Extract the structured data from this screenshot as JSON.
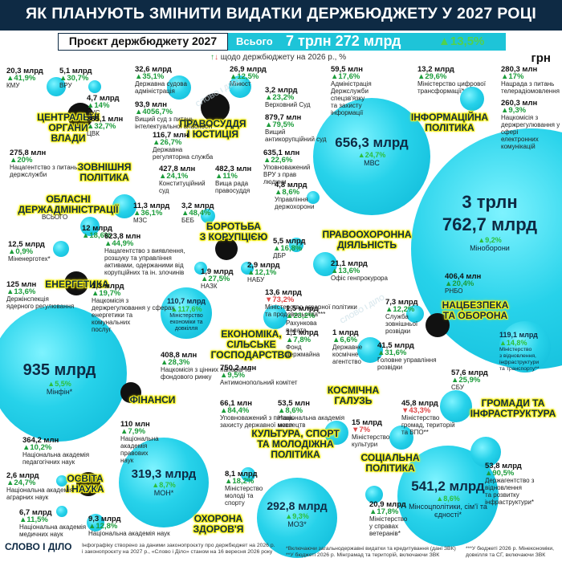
{
  "header": {
    "title": "ЯК ПЛАНУЮТЬ ЗМІНИТИ ВИДАТКИ ДЕРЖБЮДЖЕТУ У 2027 РОЦІ",
    "project_label": "Проєкт держбюджету 2027",
    "total_label": "Всього",
    "total_value": "7 трлн 272 млрд",
    "total_pct": "13,5%",
    "note": "щодо держбюджету на 2026 р., %",
    "unit": "грн"
  },
  "colors": {
    "header_bg": "#0e2a44",
    "bubble": "#1ec4d8",
    "category_highlight": "#f7ef1a",
    "increase": "#1b9c3a",
    "decrease": "#e04848"
  },
  "categories": {
    "central": "ЦЕНТРАЛЬНІ\nОРГАНИ\nВЛАДИ",
    "justice": "ПРАВОСУДДЯ\nІ ЮСТИЦІЯ",
    "info": "ІНФОРМАЦІЙНА\nПОЛІТИКА",
    "foreign": "ЗОВНІШНЯ\nПОЛІТИКА",
    "regional": "ОБЛАСНІ\nДЕРЖАДМІНІСТРАЦІЇ",
    "corruption": "БОРОТЬБА\nЗ КОРУПЦІЄЮ",
    "law": "ПРАВООХОРОННА\nДІЯЛЬНІСТЬ",
    "energy": "ЕНЕРГЕТИКА",
    "security": "НАЦБЕЗПЕКА\nТА ОБОРОНА",
    "economy": "ЕКОНОМІКА,\nСІЛЬСЬКЕ\nГОСПОДАРСТВО",
    "finance": "ФІНАНСИ",
    "space": "КОСМІЧНА\nГАЛУЗЬ",
    "infra": "ГРОМАДИ ТА\nІНФРАСТРУКТУРА",
    "culture": "КУЛЬТУРА, СПОРТ\nТА МОЛОДІЖНА\nПОЛІТИКА",
    "education": "ОСВІТА\nІ НАУКА",
    "social": "СОЦІАЛЬНА\nПОЛІТИКА",
    "health": "ОХОРОНА\nЗДОРОВ'Я"
  },
  "big": {
    "defense": {
      "value": "3 трлн\n762,7 млрд",
      "pct": "9,2%",
      "name": "Міноборони"
    },
    "finance": {
      "value": "935 млрд",
      "pct": "5,5%",
      "name": "Мінфін*"
    },
    "mvs": {
      "value": "656,3 млрд",
      "pct": "24,7%",
      "name": "МВС"
    },
    "social": {
      "value": "541,2 млрд",
      "pct": "8,6%",
      "name": "Мінсоцполітики,\nсім'ї та єдності*"
    },
    "education": {
      "value": "319,3 млрд",
      "pct": "8,7%",
      "name": "МОН*"
    },
    "health": {
      "value": "292,8 млрд",
      "pct": "9,3%",
      "name": "МОЗ*"
    },
    "economy": {
      "value": "110,7 млрд",
      "pct": "117,6%",
      "name": "Міністерство\nекономіки та\nдовкілля"
    },
    "recovery": {
      "value": "119,1 млрд",
      "pct": "14,8%",
      "name": "Міністерство\nз відновлення,\nінфраструктури\nта транспорту**"
    }
  },
  "items": [
    {
      "amt": "20,3 млрд",
      "pct": "41,9%",
      "name": "КМУ",
      "d": "u"
    },
    {
      "amt": "5,1 млрд",
      "pct": "30,7%",
      "name": "ВРУ",
      "d": "u"
    },
    {
      "amt": "4,7 млрд",
      "pct": "14%",
      "name": "ДУС",
      "d": "u"
    },
    {
      "amt": "365,1 млн",
      "pct": "32,7%",
      "name": "ЦВК",
      "d": "u"
    },
    {
      "amt": "275,8 млн",
      "pct": "20%",
      "name": "Нацагентство з питань\nдержслужби",
      "d": "u"
    },
    {
      "amt": "32,6 млрд",
      "pct": "35,1%",
      "name": "Державна судова\nадміністрація",
      "d": "u"
    },
    {
      "amt": "26,9 млрд",
      "pct": "12,5%",
      "name": "Мінюст",
      "d": "u"
    },
    {
      "amt": "3,2 млрд",
      "pct": "23,2%",
      "name": "Верховний Суд",
      "d": "u"
    },
    {
      "amt": "93,9 млн",
      "pct": "4056,7%",
      "name": "Вищий суд з питань\nінтелектуальної власності",
      "d": "u"
    },
    {
      "amt": "879,7 млн",
      "pct": "79,5%",
      "name": "Вищий\nантикорупційний суд",
      "d": "u"
    },
    {
      "amt": "116,7 млн",
      "pct": "26,7%",
      "name": "Державна\nрегуляторна служба",
      "d": "u"
    },
    {
      "amt": "635,1 млн",
      "pct": "22,6%",
      "name": "Уповноважений\nВРУ з прав\nлюдини",
      "d": "u"
    },
    {
      "amt": "427,8 млн",
      "pct": "24,1%",
      "name": "Конституційний\nсуд",
      "d": "u"
    },
    {
      "amt": "482,3 млн",
      "pct": "11%",
      "name": "Вища рада\nправосуддя",
      "d": "u"
    },
    {
      "amt": "59,5 млн",
      "pct": "17,6%",
      "name": "Адміністрація\nДержслужби\nспецзв'язку\nта захисту\nінформації",
      "d": "u"
    },
    {
      "amt": "13,2 млрд",
      "pct": "29,6%",
      "name": "Міністерство цифрової\nтрансформації*",
      "d": "u"
    },
    {
      "amt": "280,3 млн",
      "pct": "17%",
      "name": "Нацрада з питань\nтелерадіомовлення",
      "d": "u"
    },
    {
      "amt": "260,3 млн",
      "pct": "9,3%",
      "name": "Нацкомісія з\nдержрегулювання у сфері\nелектронних\nкомунікацій",
      "d": "u"
    },
    {
      "amt": "11,3 млрд",
      "pct": "36,1%",
      "name": "МЗС",
      "d": "u"
    },
    {
      "amt": "3,2 млрд",
      "pct": "48,4%",
      "name": "БЕБ",
      "d": "u"
    },
    {
      "amt": "4,8 млрд",
      "pct": "8,6%",
      "name": "Управління\nдержохорони",
      "d": "u"
    },
    {
      "amt": "12 млрд",
      "pct": "18,6%",
      "name": "",
      "d": "u"
    },
    {
      "amt": "623,8 млн",
      "pct": "44,9%",
      "name": "Нацагентство з виявлення,\nрозшуку та управління\nактивами, одержаними від\nкорупційних та ін. злочинів",
      "d": "u"
    },
    {
      "amt": "5,5 млрд",
      "pct": "16,8%",
      "name": "ДБР",
      "d": "u"
    },
    {
      "amt": "1,9 млрд",
      "pct": "27,5%",
      "name": "НАЗК",
      "d": "u"
    },
    {
      "amt": "2,9 млрд",
      "pct": "12,1%",
      "name": "НАБУ",
      "d": "u"
    },
    {
      "amt": "21,1 млрд",
      "pct": "13,6%",
      "name": "Офіс генпрокурора",
      "d": "u"
    },
    {
      "amt": "12,5 млрд",
      "pct": "0,9%",
      "name": "Міненерготех*",
      "d": "u"
    },
    {
      "amt": "125 млн",
      "pct": "13,6%",
      "name": "Держінспекція\nядерного регулювання",
      "d": "u"
    },
    {
      "amt": "1,3 млрд",
      "pct": "19,7%",
      "name": "Нацкомісія з\nдержрегулювання у сферах\nенергетики та\nкомунальних\nпослуг",
      "d": "u"
    },
    {
      "amt": "13,6 млрд",
      "pct": "73,2%",
      "name": "Міністерство аграрної політики\nта продовольства***",
      "d": "d"
    },
    {
      "amt": "406,4 млн",
      "pct": "20,4%",
      "name": "РНБО",
      "d": "u"
    },
    {
      "amt": "7,3 млрд",
      "pct": "12,2%",
      "name": "Служба\nзовнішньої\nрозвідки",
      "d": "u"
    },
    {
      "amt": "1,5 млрд",
      "pct": "23,2%",
      "name": "Рахункова\nпалата",
      "d": "u"
    },
    {
      "amt": "1,1 млрд",
      "pct": "7,8%",
      "name": "Фонд\nдержмайна",
      "d": "u"
    },
    {
      "amt": "1 млрд",
      "pct": "6,6%",
      "name": "Державне\nкосмічне\nагентство",
      "d": "u"
    },
    {
      "amt": "41,5 млрд",
      "pct": "31,6%",
      "name": "Головне управління\nрозвідки",
      "d": "u"
    },
    {
      "amt": "408,8 млн",
      "pct": "28,3%",
      "name": "Нацкомісія з цінних паперів та\nфондового ринку",
      "d": "u"
    },
    {
      "amt": "750,2 млн",
      "pct": "9,5%",
      "name": "Антимонопольний комітет",
      "d": "u"
    },
    {
      "amt": "57,6 млрд",
      "pct": "25,9%",
      "name": "СБУ",
      "d": "u"
    },
    {
      "amt": "66,1 млн",
      "pct": "84,4%",
      "name": "Уповноважений з питань\nзахисту державної мови",
      "d": "u"
    },
    {
      "amt": "53,5 млн",
      "pct": "8,6%",
      "name": "Національна академія\nмистецтв",
      "d": "u"
    },
    {
      "amt": "45,8 млрд",
      "pct": "43,3%",
      "name": "Міністерство\nгромад, територій\nта ВПО**",
      "d": "d"
    },
    {
      "amt": "15 млрд",
      "pct": "7%",
      "name": "Міністерство\nкультури",
      "d": "d"
    },
    {
      "amt": "110 млн",
      "pct": "7,9%",
      "name": "Національна\nакадемія\nправових\nнаук",
      "d": "u"
    },
    {
      "amt": "364,2 млн",
      "pct": "10,2%",
      "name": "Національна академія\nпедагогічних наук",
      "d": "u"
    },
    {
      "amt": "2,6 млрд",
      "pct": "24,7%",
      "name": "Національна академія\nаграрних наук",
      "d": "u"
    },
    {
      "amt": "8,1 млрд",
      "pct": "18,2%",
      "name": "Міністерство\nмолоді та\nспорту",
      "d": "u"
    },
    {
      "amt": "6,7 млрд",
      "pct": "11,5%",
      "name": "Національна академія\nмедичних наук",
      "d": "u"
    },
    {
      "amt": "9,3 млрд",
      "pct": "12,8%",
      "name": "Національна академія наук",
      "d": "u"
    },
    {
      "amt": "20,9 млрд",
      "pct": "17,8%",
      "name": "Міністерство\nу справах\nветеранів*",
      "d": "u"
    },
    {
      "amt": "53,8 млрд",
      "pct": "90,5%",
      "name": "Держагентство з\nвідновлення\nта розвитку\nінфраструктури*",
      "d": "u"
    }
  ],
  "regional_note": "ВСЬОГО",
  "footer": {
    "logo": "СЛОВО І ДІЛО",
    "f1": "Інфографіку створено за даними законопроєкту про держбюджет на 2026 р.\nі законопроєкту на 2027 р., «Слово і Діло» станом на 16 вересня 2026 року",
    "f2": "*Включаючи загальнодержавні видатки та кредитування (дані ЗВК)\n**У бюджеті 2026 р. Мінграмад та територій, включаючи ЗВК",
    "f3": "***У бюджеті 2026 р. Мінекономіки,\nдовкілля та СГ, включаючи ЗВК"
  }
}
